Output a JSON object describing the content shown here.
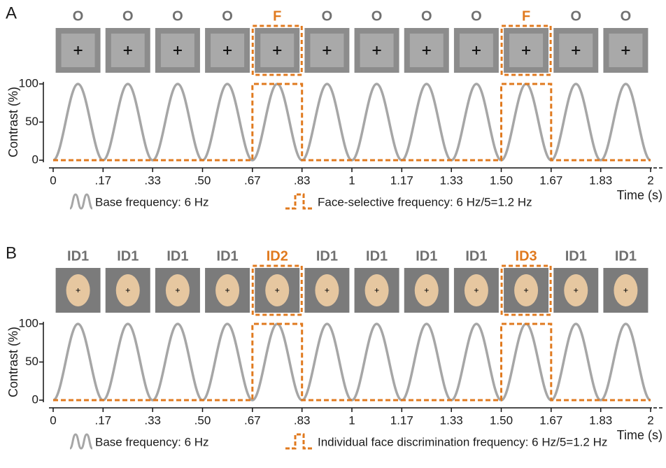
{
  "chart_data": [
    {
      "type": "line",
      "panel_label": "A",
      "stimulus_labels": [
        "O",
        "O",
        "O",
        "O",
        "F",
        "O",
        "O",
        "O",
        "O",
        "F",
        "O",
        "O"
      ],
      "stimulus_colors": [
        "#707070",
        "#707070",
        "#707070",
        "#707070",
        "#e07a1f",
        "#707070",
        "#707070",
        "#707070",
        "#707070",
        "#e07a1f",
        "#707070",
        "#707070"
      ],
      "ylabel": "Contrast (%)",
      "xlabel": "Time (s)",
      "xlim": [
        0,
        2
      ],
      "ylim": [
        0,
        100
      ],
      "xticks": [
        0,
        {
          "value": 0.167,
          "label": ".17"
        },
        {
          "value": 0.333,
          "label": ".33"
        },
        {
          "value": 0.5,
          "label": ".50"
        },
        {
          "value": 0.667,
          "label": ".67"
        },
        {
          "value": 0.833,
          "label": ".83"
        },
        1,
        {
          "value": 1.167,
          "label": "1.17"
        },
        {
          "value": 1.333,
          "label": "1.33"
        },
        {
          "value": 1.5,
          "label": "1.50"
        },
        {
          "value": 1.667,
          "label": "1.67"
        },
        {
          "value": 1.833,
          "label": "1.83"
        },
        2
      ],
      "yticks": [
        0,
        50,
        100
      ],
      "series": [
        {
          "name": "Base frequency: 6 Hz",
          "color": "#a6a6a6",
          "smooth": true,
          "dash": false,
          "x": [
            0,
            0.083,
            0.167,
            0.25,
            0.333,
            0.417,
            0.5,
            0.583,
            0.667,
            0.75,
            0.833,
            0.917,
            1,
            1.083,
            1.167,
            1.25,
            1.333,
            1.417,
            1.5,
            1.583,
            1.667,
            1.75,
            1.833,
            1.917,
            2
          ],
          "values": [
            0,
            100,
            0,
            100,
            0,
            100,
            0,
            100,
            0,
            100,
            0,
            100,
            0,
            100,
            0,
            100,
            0,
            100,
            0,
            100,
            0,
            100,
            0,
            100,
            0
          ]
        },
        {
          "name": "Face-selective frequency: 6 Hz/5=1.2 Hz",
          "color": "#e07a1f",
          "smooth": false,
          "dash": true,
          "x": [
            0,
            0.667,
            0.667,
            0.833,
            0.833,
            1.5,
            1.5,
            1.667,
            1.667,
            2
          ],
          "values": [
            0,
            0,
            100,
            100,
            0,
            0,
            100,
            100,
            0,
            0
          ]
        }
      ]
    },
    {
      "type": "line",
      "panel_label": "B",
      "stimulus_labels": [
        "ID1",
        "ID1",
        "ID1",
        "ID1",
        "ID2",
        "ID1",
        "ID1",
        "ID1",
        "ID1",
        "ID3",
        "ID1",
        "ID1"
      ],
      "stimulus_colors": [
        "#707070",
        "#707070",
        "#707070",
        "#707070",
        "#e07a1f",
        "#707070",
        "#707070",
        "#707070",
        "#707070",
        "#e07a1f",
        "#707070",
        "#707070"
      ],
      "ylabel": "Contrast (%)",
      "xlabel": "Time (s)",
      "xlim": [
        0,
        2
      ],
      "ylim": [
        0,
        100
      ],
      "xticks": [
        0,
        {
          "value": 0.167,
          "label": ".17"
        },
        {
          "value": 0.333,
          "label": ".33"
        },
        {
          "value": 0.5,
          "label": ".50"
        },
        {
          "value": 0.667,
          "label": ".67"
        },
        {
          "value": 0.833,
          "label": ".83"
        },
        1,
        {
          "value": 1.167,
          "label": "1.17"
        },
        {
          "value": 1.333,
          "label": "1.33"
        },
        {
          "value": 1.5,
          "label": "1.50"
        },
        {
          "value": 1.667,
          "label": "1.67"
        },
        {
          "value": 1.833,
          "label": "1.83"
        },
        2
      ],
      "yticks": [
        0,
        50,
        100
      ],
      "series": [
        {
          "name": "Base frequency: 6 Hz",
          "color": "#a6a6a6",
          "smooth": true,
          "dash": false,
          "x": [
            0,
            0.083,
            0.167,
            0.25,
            0.333,
            0.417,
            0.5,
            0.583,
            0.667,
            0.75,
            0.833,
            0.917,
            1,
            1.083,
            1.167,
            1.25,
            1.333,
            1.417,
            1.5,
            1.583,
            1.667,
            1.75,
            1.833,
            1.917,
            2
          ],
          "values": [
            0,
            100,
            0,
            100,
            0,
            100,
            0,
            100,
            0,
            100,
            0,
            100,
            0,
            100,
            0,
            100,
            0,
            100,
            0,
            100,
            0,
            100,
            0,
            100,
            0
          ]
        },
        {
          "name": "Individual face discrimination frequency: 6 Hz/5=1.2 Hz",
          "color": "#e07a1f",
          "smooth": false,
          "dash": true,
          "x": [
            0,
            0.667,
            0.667,
            0.833,
            0.833,
            1.5,
            1.5,
            1.667,
            1.667,
            2
          ],
          "values": [
            0,
            0,
            100,
            100,
            0,
            0,
            100,
            100,
            0,
            0
          ]
        }
      ]
    }
  ]
}
